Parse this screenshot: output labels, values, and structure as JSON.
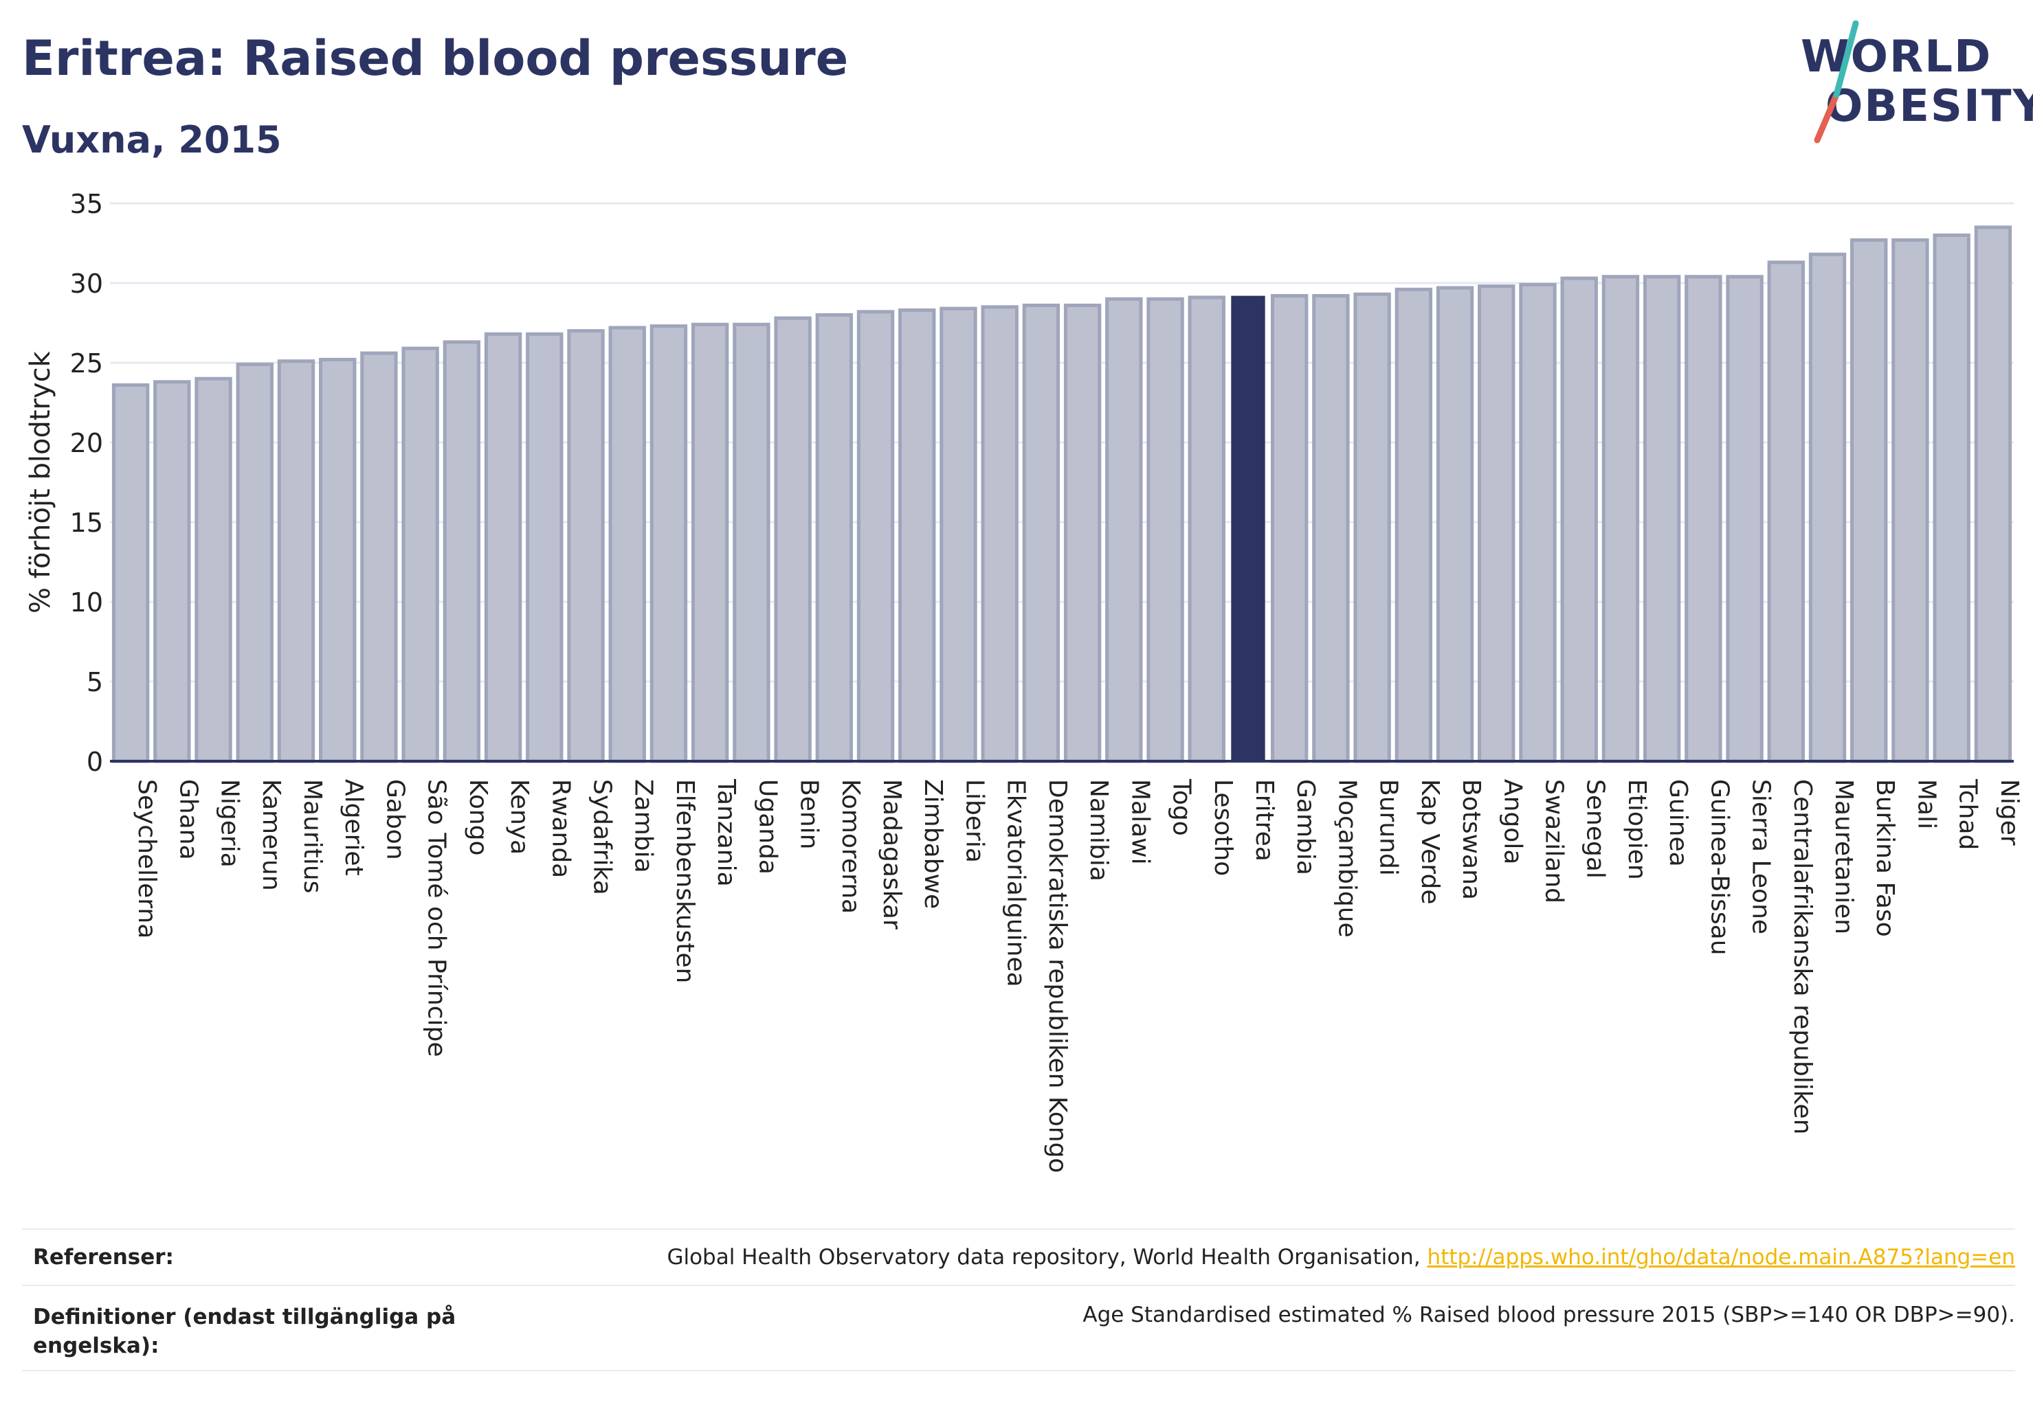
{
  "header": {
    "title": "Eritrea: Raised blood pressure",
    "subtitle": "Vuxna, 2015"
  },
  "logo": {
    "line1": "WORLD",
    "line2": "OBESITY",
    "accent_colors": [
      "#e5604f",
      "#3fb9b3"
    ]
  },
  "chart_data": {
    "type": "bar",
    "ylabel": "% förhöjt blodtryck",
    "ylim": [
      0,
      35
    ],
    "yticks": [
      0,
      5,
      10,
      15,
      20,
      25,
      30,
      35
    ],
    "grid": true,
    "highlight": "Eritrea",
    "colors": {
      "bar": "#bcc0cf",
      "bar_border": "#9fa5bb",
      "highlight": "#2c3463",
      "grid": "#e6e8f0"
    },
    "categories": [
      "Seychellerna",
      "Ghana",
      "Nigeria",
      "Kamerun",
      "Mauritius",
      "Algeriet",
      "Gabon",
      "São Tomé och Príncipe",
      "Kongo",
      "Kenya",
      "Rwanda",
      "Sydafrika",
      "Zambia",
      "Elfenbenskusten",
      "Tanzania",
      "Uganda",
      "Benin",
      "Komorerna",
      "Madagaskar",
      "Zimbabwe",
      "Liberia",
      "Ekvatorialguinea",
      "Demokratiska republiken Kongo",
      "Namibia",
      "Malawi",
      "Togo",
      "Lesotho",
      "Eritrea",
      "Gambia",
      "Moçambique",
      "Burundi",
      "Kap Verde",
      "Botswana",
      "Angola",
      "Swaziland",
      "Senegal",
      "Etiopien",
      "Guinea",
      "Guinea-Bissau",
      "Sierra Leone",
      "Centralafrikanska republiken",
      "Mauretanien",
      "Burkina Faso",
      "Mali",
      "Tchad",
      "Niger"
    ],
    "values": [
      23.6,
      23.8,
      24.0,
      24.9,
      25.1,
      25.2,
      25.6,
      25.9,
      26.3,
      26.8,
      26.8,
      27.0,
      27.2,
      27.3,
      27.4,
      27.4,
      27.8,
      28.0,
      28.2,
      28.3,
      28.4,
      28.5,
      28.6,
      28.6,
      29.0,
      29.0,
      29.1,
      29.2,
      29.2,
      29.2,
      29.3,
      29.6,
      29.7,
      29.8,
      29.9,
      30.3,
      30.4,
      30.4,
      30.4,
      30.4,
      31.3,
      31.8,
      32.7,
      32.7,
      33.0,
      33.5
    ]
  },
  "footer": {
    "ref_label": "Referenser:",
    "ref_text": "Global Health Observatory data repository, World Health Organisation,",
    "ref_link": "http://apps.who.int/gho/data/node.main.A875?lang=en",
    "def_label": "Definitioner (endast tillgängliga på engelska):",
    "def_text": "Age Standardised estimated % Raised blood pressure 2015 (SBP>=140 OR DBP>=90)."
  }
}
